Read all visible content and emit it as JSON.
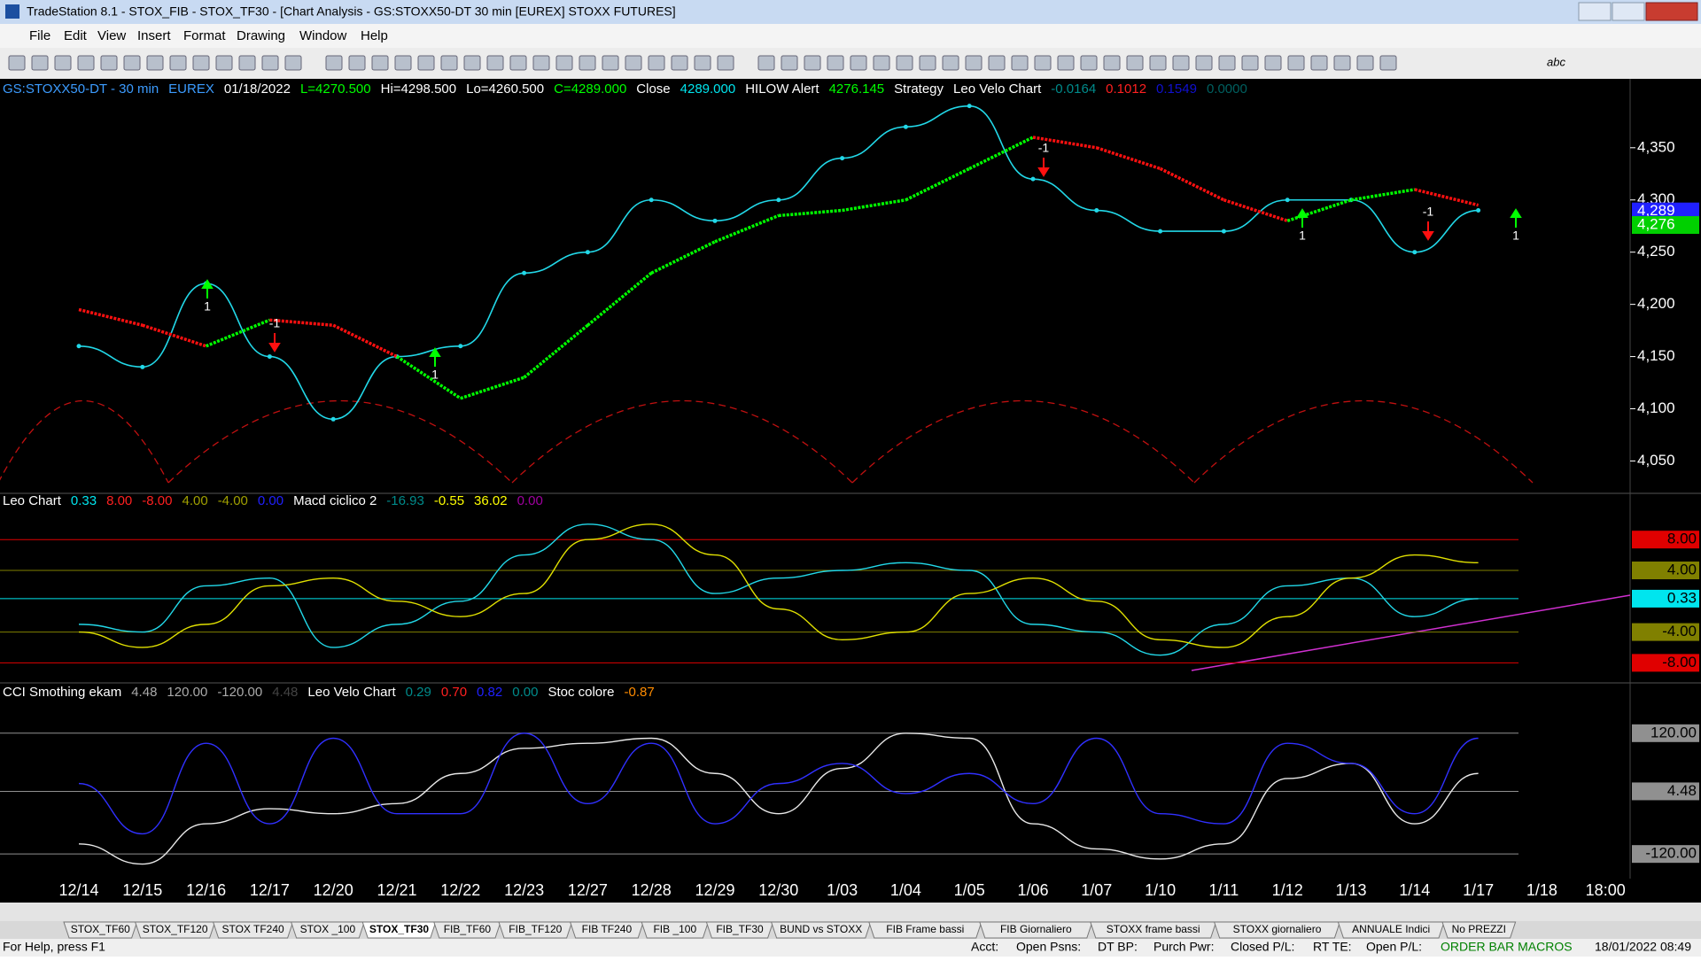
{
  "window": {
    "title": "TradeStation 8.1 - STOX_FIB - STOX_TF30 - [Chart Analysis - GS:STOXX50-DT  30 min  [EUREX] STOXX FUTURES]",
    "menu": [
      "File",
      "Edit",
      "View",
      "Insert",
      "Format",
      "Drawing",
      "Window",
      "Help"
    ],
    "toolbar_text": "abc",
    "tabs": [
      "STOX_TF60",
      "STOX_TF120",
      "STOX TF240",
      "STOX _100",
      "STOX_TF30",
      "FIB_TF60",
      "FIB_TF120",
      "FIB TF240",
      "FIB _100",
      "FIB_TF30",
      "BUND vs STOXX",
      "FIB Frame bassi",
      "FIB Giornaliero",
      "STOXX frame bassi",
      "STOXX giornaliero",
      "ANNUALE Indici",
      "No PREZZI"
    ],
    "active_tab": 4,
    "status": [
      "For Help, press F1",
      "Acct:",
      "Open Psns:",
      "DT BP:",
      "Purch Pwr:",
      "Closed P/L:",
      "RT TE:",
      "Open P/L:",
      "ORDER BAR MACROS",
      "18/01/2022 08:49"
    ]
  },
  "chart_data": [
    {
      "type": "line",
      "header": [
        {
          "text": "GS:STOXX50-DT - 30 min",
          "color": "#3c9cff"
        },
        {
          "text": "EUREX",
          "color": "#3c9cff"
        },
        {
          "text": "01/18/2022",
          "color": "#ffffff"
        },
        {
          "text": "L=4270.500",
          "color": "#00ff00"
        },
        {
          "text": "Hi=4298.500",
          "color": "#ffffff"
        },
        {
          "text": "Lo=4260.500",
          "color": "#ffffff"
        },
        {
          "text": "C=4289.000",
          "color": "#00ff00"
        },
        {
          "text": "Close",
          "color": "#ffffff"
        },
        {
          "text": "4289.000",
          "color": "#00e5ee"
        },
        {
          "text": "HILOW Alert",
          "color": "#ffffff"
        },
        {
          "text": "4276.145",
          "color": "#00ff00"
        },
        {
          "text": "Strategy",
          "color": "#ffffff"
        },
        {
          "text": "Leo Velo Chart",
          "color": "#ffffff"
        },
        {
          "text": "-0.0164",
          "color": "#008b8b"
        },
        {
          "text": "0.1012",
          "color": "#ff2020"
        },
        {
          "text": "0.1549",
          "color": "#1010d0"
        },
        {
          "text": "0.0000",
          "color": "#006060"
        }
      ],
      "categories": [
        "12/14",
        "12/15",
        "12/16",
        "12/17",
        "12/20",
        "12/21",
        "12/22",
        "12/23",
        "12/27",
        "12/28",
        "12/29",
        "12/30",
        "1/03",
        "1/04",
        "1/05",
        "1/06",
        "1/07",
        "1/10",
        "1/11",
        "1/12",
        "1/13",
        "1/14",
        "1/17",
        "1/18",
        "18:00"
      ],
      "series": [
        {
          "color": "#22d8e8",
          "values": [
            4160,
            4140,
            4220,
            4150,
            4090,
            4150,
            4160,
            4230,
            4250,
            4300,
            4280,
            4300,
            4340,
            4370,
            4390,
            4320,
            4290,
            4270,
            4270,
            4300,
            4300,
            4250,
            4290,
            null,
            null
          ]
        },
        {
          "color": "#00ff00",
          "down_color": "#ff1010",
          "values": [
            4195,
            4180,
            4160,
            4185,
            4180,
            4150,
            4110,
            4130,
            4180,
            4230,
            4260,
            4285,
            4290,
            4300,
            4330,
            4360,
            4350,
            4330,
            4300,
            4280,
            4300,
            4310,
            4295,
            null,
            null
          ]
        }
      ],
      "ylim": [
        4019,
        4416
      ],
      "yticks": [
        {
          "value": 4050,
          "label": "4,050"
        },
        {
          "value": 4100,
          "label": "4,100"
        },
        {
          "value": 4150,
          "label": "4,150"
        },
        {
          "value": 4200,
          "label": "4,200"
        },
        {
          "value": 4250,
          "label": "4,250"
        },
        {
          "value": 4300,
          "label": "4,300"
        },
        {
          "value": 4350,
          "label": "4,350"
        }
      ],
      "tags": [
        {
          "value": 4289,
          "label": "4,289",
          "color": "#2020ff"
        },
        {
          "value": 4276,
          "label": "4,276",
          "color": "#00d000"
        }
      ],
      "signals": [
        "1",
        "-1",
        "1",
        "-1",
        "1",
        "-1",
        "1"
      ]
    },
    {
      "type": "line",
      "header": [
        {
          "text": "Leo Chart",
          "color": "#ffffff"
        },
        {
          "text": "0.33",
          "color": "#00e5ee"
        },
        {
          "text": "8.00",
          "color": "#ff2020"
        },
        {
          "text": "-8.00",
          "color": "#ff2020"
        },
        {
          "text": "4.00",
          "color": "#a0a000"
        },
        {
          "text": "-4.00",
          "color": "#a0a000"
        },
        {
          "text": "0.00",
          "color": "#2020ff"
        },
        {
          "text": "Macd ciclico 2",
          "color": "#ffffff"
        },
        {
          "text": "-16.93",
          "color": "#008b8b"
        },
        {
          "text": "-0.55",
          "color": "#ffff00"
        },
        {
          "text": "36.02",
          "color": "#ffff00"
        },
        {
          "text": "0.00",
          "color": "#a000a0"
        }
      ],
      "series": [
        {
          "color": "#22d8e8",
          "values": [
            -3,
            -4,
            2,
            3,
            -6,
            -3,
            0,
            6,
            10,
            8,
            1,
            3,
            4,
            5,
            4,
            -3,
            -4,
            -7,
            -3,
            2,
            3,
            -2,
            0.33,
            null,
            null
          ]
        },
        {
          "color": "#e0e000",
          "values": [
            -4,
            -6,
            -3,
            2,
            3,
            0,
            -2,
            1,
            8,
            10,
            6,
            -1,
            -5,
            -4,
            1,
            3,
            0,
            -5,
            -6,
            -2,
            3,
            6,
            5,
            null,
            null
          ]
        }
      ],
      "ylim": [
        -10.6,
        14
      ],
      "yticks": [
        {
          "value": 8,
          "label": "8.00",
          "color": "#e00000"
        },
        {
          "value": 4,
          "label": "4.00",
          "color": "#808000"
        },
        {
          "value": 0.33,
          "label": "0.33",
          "color": "#00e5ee"
        },
        {
          "value": -4,
          "label": "-4.00",
          "color": "#808000"
        },
        {
          "value": -8,
          "label": "-8.00",
          "color": "#e00000"
        }
      ]
    },
    {
      "type": "line",
      "header": [
        {
          "text": "CCI Smothing ekam",
          "color": "#ffffff"
        },
        {
          "text": "4.48",
          "color": "#aaaaaa"
        },
        {
          "text": "120.00",
          "color": "#aaaaaa"
        },
        {
          "text": "-120.00",
          "color": "#aaaaaa"
        },
        {
          "text": "4.48",
          "color": "#444444"
        },
        {
          "text": "Leo Velo Chart",
          "color": "#ffffff"
        },
        {
          "text": "0.29",
          "color": "#008b8b"
        },
        {
          "text": "0.70",
          "color": "#ff2020"
        },
        {
          "text": "0.82",
          "color": "#2020ff"
        },
        {
          "text": "0.00",
          "color": "#008b8b"
        },
        {
          "text": "Stoc colore",
          "color": "#ffffff"
        },
        {
          "text": "-0.87",
          "color": "#ff8c00"
        }
      ],
      "series": [
        {
          "color": "#e8e8e8",
          "values": [
            -100,
            -140,
            -60,
            -30,
            -40,
            -20,
            40,
            90,
            100,
            110,
            40,
            -40,
            50,
            120,
            110,
            -60,
            -110,
            -130,
            -100,
            30,
            60,
            -60,
            40,
            null,
            null
          ]
        },
        {
          "color": "#3030ff",
          "values": [
            20,
            -80,
            100,
            -60,
            110,
            -40,
            -40,
            120,
            -20,
            100,
            -60,
            20,
            60,
            0,
            40,
            -20,
            110,
            -40,
            -60,
            100,
            60,
            -40,
            110,
            null,
            null
          ]
        }
      ],
      "ylim": [
        -169,
        220
      ],
      "yticks": [
        {
          "value": 120,
          "label": "120.00",
          "color": "#909090"
        },
        {
          "value": 4.48,
          "label": "4.48",
          "color": "#909090"
        },
        {
          "value": -120,
          "label": "-120.00",
          "color": "#909090"
        }
      ]
    }
  ]
}
